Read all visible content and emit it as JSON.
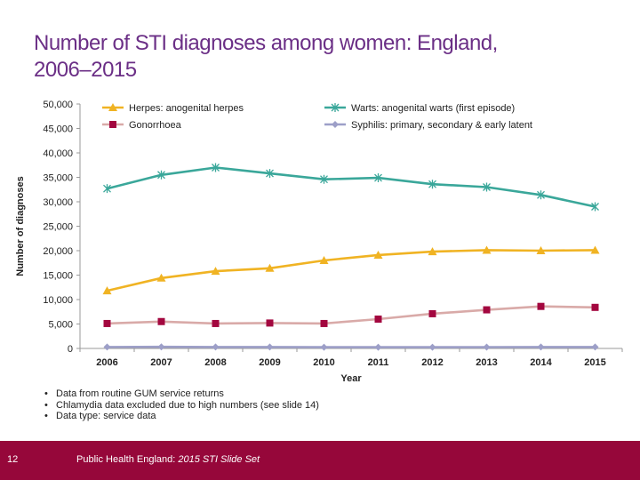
{
  "slide": {
    "title_line1": "Number of STI diagnoses among women: England,",
    "title_line2": "2006–2015",
    "bullets": [
      "Data from routine GUM service returns",
      "Chlamydia data excluded due to high numbers (see slide 14)",
      "Data type: service data"
    ],
    "footer": {
      "page_number": "12",
      "source_prefix": "Public Health England:",
      "source_title": "2015 STI Slide Set",
      "bar_color": "#96073a"
    }
  },
  "chart_data": {
    "type": "line",
    "title": "",
    "xlabel": "Year",
    "ylabel": "Number of diagnoses",
    "categories": [
      "2006",
      "2007",
      "2008",
      "2009",
      "2010",
      "2011",
      "2012",
      "2013",
      "2014",
      "2015"
    ],
    "ylim": [
      0,
      50000
    ],
    "yticks": [
      0,
      5000,
      10000,
      15000,
      20000,
      25000,
      30000,
      35000,
      40000,
      45000,
      50000
    ],
    "ytick_labels": [
      "0",
      "5,000",
      "10,000",
      "15,000",
      "20,000",
      "25,000",
      "30,000",
      "35,000",
      "40,000",
      "45,000",
      "50,000"
    ],
    "grid": false,
    "legend_position": "top",
    "series": [
      {
        "name": "Herpes: anogenital herpes",
        "color": "#f0b323",
        "marker": "triangle",
        "values": [
          11800,
          14400,
          15800,
          16400,
          18000,
          19100,
          19800,
          20100,
          20000,
          20100
        ]
      },
      {
        "name": "Warts: anogenital warts (first episode)",
        "color": "#3aa79a",
        "marker": "star",
        "values": [
          32700,
          35500,
          37000,
          35800,
          34600,
          34900,
          33600,
          33000,
          31400,
          29000
        ]
      },
      {
        "name": "Gonorrhoea",
        "color": "#a3073f",
        "line_color": "#d9aaa8",
        "marker": "square",
        "values": [
          5100,
          5500,
          5100,
          5200,
          5100,
          6000,
          7100,
          7900,
          8600,
          8400
        ]
      },
      {
        "name": "Syphilis: primary, secondary & early latent",
        "color": "#9d9fc8",
        "marker": "diamond",
        "values": [
          300,
          320,
          300,
          300,
          250,
          250,
          260,
          270,
          290,
          300
        ]
      }
    ]
  }
}
